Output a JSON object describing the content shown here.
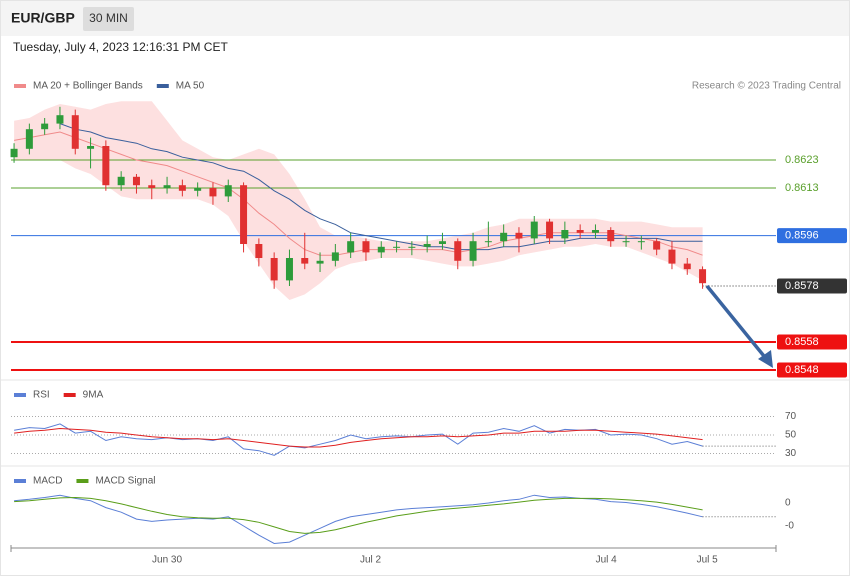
{
  "header": {
    "symbol": "EUR/GBP",
    "interval": "30 MIN",
    "timestamp": "Tuesday, July 4, 2023 12:16:31 PM CET"
  },
  "chart_data": [
    {
      "type": "candlestick",
      "credit": "Research © 2023 Trading Central",
      "up_color": "#2e9b3a",
      "down_color": "#e03131",
      "xlim": [
        -0.2,
        49.8
      ],
      "xticks": [
        {
          "value": 10,
          "label": "Jun 30"
        },
        {
          "value": 23.3,
          "label": "Jul 2"
        },
        {
          "value": 38.7,
          "label": "Jul 4"
        },
        {
          "value": 45.3,
          "label": "Jul 5"
        }
      ],
      "ylim": [
        0.8545,
        0.8645
      ],
      "candles": [
        [
          0.8624,
          0.8629,
          0.8622,
          0.8627
        ],
        [
          0.8627,
          0.8636,
          0.8625,
          0.8634
        ],
        [
          0.8634,
          0.8638,
          0.8632,
          0.8636
        ],
        [
          0.8636,
          0.8642,
          0.8634,
          0.8639
        ],
        [
          0.8639,
          0.8641,
          0.8625,
          0.8627
        ],
        [
          0.8627,
          0.8631,
          0.862,
          0.8628
        ],
        [
          0.8628,
          0.863,
          0.8612,
          0.8614
        ],
        [
          0.8614,
          0.8619,
          0.8612,
          0.8617
        ],
        [
          0.8617,
          0.8618,
          0.8611,
          0.8614
        ],
        [
          0.8614,
          0.8616,
          0.8609,
          0.8613
        ],
        [
          0.8613,
          0.8617,
          0.8611,
          0.8614
        ],
        [
          0.8614,
          0.8616,
          0.861,
          0.8612
        ],
        [
          0.8612,
          0.8615,
          0.861,
          0.8613
        ],
        [
          0.8613,
          0.8615,
          0.8607,
          0.861
        ],
        [
          0.861,
          0.8616,
          0.8608,
          0.8614
        ],
        [
          0.8614,
          0.8615,
          0.859,
          0.8593
        ],
        [
          0.8593,
          0.8595,
          0.8585,
          0.8588
        ],
        [
          0.8588,
          0.859,
          0.8577,
          0.858
        ],
        [
          0.858,
          0.8591,
          0.8578,
          0.8588
        ],
        [
          0.8588,
          0.8597,
          0.8584,
          0.8586
        ],
        [
          0.8586,
          0.859,
          0.8583,
          0.8587
        ],
        [
          0.8587,
          0.8593,
          0.8585,
          0.859
        ],
        [
          0.859,
          0.8597,
          0.8588,
          0.8594
        ],
        [
          0.8594,
          0.8595,
          0.8587,
          0.859
        ],
        [
          0.859,
          0.8594,
          0.8588,
          0.8592
        ],
        [
          0.8592,
          0.8594,
          0.859,
          0.8592
        ],
        [
          0.8592,
          0.8594,
          0.8589,
          0.8592
        ],
        [
          0.8592,
          0.8596,
          0.859,
          0.8593
        ],
        [
          0.8593,
          0.8597,
          0.8591,
          0.8594
        ],
        [
          0.8594,
          0.8595,
          0.8584,
          0.8587
        ],
        [
          0.8587,
          0.8597,
          0.8585,
          0.8594
        ],
        [
          0.8594,
          0.8601,
          0.8592,
          0.8594
        ],
        [
          0.8594,
          0.86,
          0.8592,
          0.8597
        ],
        [
          0.8597,
          0.8599,
          0.859,
          0.8595
        ],
        [
          0.8595,
          0.8603,
          0.8593,
          0.8601
        ],
        [
          0.8601,
          0.8602,
          0.8593,
          0.8595
        ],
        [
          0.8595,
          0.8601,
          0.8593,
          0.8598
        ],
        [
          0.8598,
          0.86,
          0.8595,
          0.8597
        ],
        [
          0.8597,
          0.86,
          0.8595,
          0.8598
        ],
        [
          0.8598,
          0.8599,
          0.8592,
          0.8594
        ],
        [
          0.8594,
          0.8596,
          0.8592,
          0.8594
        ],
        [
          0.8594,
          0.8596,
          0.8591,
          0.8594
        ],
        [
          0.8594,
          0.8595,
          0.8589,
          0.8591
        ],
        [
          0.8591,
          0.8594,
          0.8584,
          0.8586
        ],
        [
          0.8586,
          0.8588,
          0.8582,
          0.8584
        ],
        [
          0.8584,
          0.8585,
          0.8577,
          0.8579
        ]
      ],
      "series": [
        {
          "name": "MA 20 + Bollinger Bands",
          "color": "#f08a8a",
          "band_color": "#fde0e0",
          "values": [
            0.863,
            0.8631,
            0.8632,
            0.8633,
            0.8631,
            0.8629,
            0.8627,
            0.8625,
            0.8623,
            0.8622,
            0.8621,
            0.8619,
            0.8617,
            0.8615,
            0.8613,
            0.8609,
            0.8604,
            0.86,
            0.8595,
            0.8591,
            0.8589,
            0.8589,
            0.859,
            0.8591,
            0.8591,
            0.8591,
            0.8591,
            0.8591,
            0.8591,
            0.859,
            0.8591,
            0.8592,
            0.8594,
            0.8595,
            0.8596,
            0.8597,
            0.8597,
            0.8597,
            0.8597,
            0.8597,
            0.8596,
            0.8595,
            0.8594,
            0.8592,
            0.8591,
            0.8589
          ],
          "band_upper": [
            0.8637,
            0.8638,
            0.8641,
            0.8643,
            0.8642,
            0.8641,
            0.8643,
            0.8644,
            0.8644,
            0.8644,
            0.8637,
            0.863,
            0.8627,
            0.8624,
            0.8623,
            0.8625,
            0.8627,
            0.8625,
            0.8618,
            0.8609,
            0.8599,
            0.8596,
            0.8596,
            0.8595,
            0.8594,
            0.8594,
            0.8594,
            0.8594,
            0.8595,
            0.8596,
            0.8597,
            0.8599,
            0.86,
            0.8602,
            0.8602,
            0.8602,
            0.8602,
            0.8602,
            0.8602,
            0.8601,
            0.8601,
            0.8601,
            0.86,
            0.8599,
            0.8599,
            0.8599
          ],
          "band_lower": [
            0.8623,
            0.8623,
            0.8623,
            0.8623,
            0.862,
            0.8618,
            0.8614,
            0.861,
            0.8609,
            0.8609,
            0.8609,
            0.8609,
            0.8609,
            0.8607,
            0.8603,
            0.8594,
            0.8586,
            0.8578,
            0.8573,
            0.8575,
            0.8579,
            0.8584,
            0.8586,
            0.8587,
            0.8588,
            0.8588,
            0.8588,
            0.8587,
            0.8586,
            0.8585,
            0.8585,
            0.8586,
            0.8587,
            0.8589,
            0.859,
            0.8591,
            0.8592,
            0.8592,
            0.8593,
            0.8592,
            0.8592,
            0.859,
            0.8588,
            0.8586,
            0.8583,
            0.858
          ]
        },
        {
          "name": "MA 50",
          "color": "#3a5f9c",
          "values": [
            null,
            null,
            null,
            0.8636,
            0.8634,
            0.8633,
            0.8631,
            0.863,
            0.8629,
            0.8627,
            0.8626,
            0.8624,
            0.8623,
            0.8622,
            0.862,
            0.8619,
            0.8616,
            0.8612,
            0.8609,
            0.8605,
            0.8602,
            0.86,
            0.8597,
            0.8596,
            0.8595,
            0.8594,
            0.8593,
            0.8592,
            0.8592,
            0.8591,
            0.8591,
            0.8591,
            0.8592,
            0.8592,
            0.8593,
            0.8594,
            0.8594,
            0.8595,
            0.8595,
            0.8595,
            0.8595,
            0.8595,
            0.8595,
            0.8594,
            0.8594,
            0.8594
          ]
        }
      ],
      "levels": [
        {
          "value": 0.8623,
          "color": "#5aa02c",
          "style": "thin"
        },
        {
          "value": 0.8613,
          "color": "#5aa02c",
          "style": "thin"
        },
        {
          "value": 0.8596,
          "color": "#2f6fe0",
          "style": "box"
        },
        {
          "value": 0.8578,
          "color": "#333333",
          "style": "dotted"
        },
        {
          "value": 0.8558,
          "color": "#ee1111",
          "style": "bold"
        },
        {
          "value": 0.8548,
          "color": "#ee1111",
          "style": "bold"
        }
      ]
    },
    {
      "type": "line",
      "grid": true,
      "ylim": [
        20,
        84
      ],
      "yticks": [
        30,
        50,
        70
      ],
      "series": [
        {
          "name": "RSI",
          "color": "#5b7fd6",
          "values": [
            55,
            58,
            57,
            62,
            52,
            54,
            44,
            48,
            46,
            45,
            47,
            45,
            46,
            44,
            48,
            35,
            33,
            28,
            38,
            36,
            40,
            44,
            50,
            46,
            48,
            49,
            48,
            50,
            51,
            40,
            52,
            53,
            57,
            54,
            60,
            52,
            56,
            55,
            56,
            50,
            51,
            50,
            46,
            40,
            43,
            38
          ]
        },
        {
          "name": "9MA",
          "color": "#e02020",
          "values": [
            52,
            54,
            55,
            57,
            56,
            55,
            53,
            52,
            50,
            48,
            47,
            46,
            46,
            45,
            46,
            44,
            42,
            40,
            38,
            37,
            37,
            39,
            42,
            44,
            46,
            47,
            48,
            48,
            49,
            48,
            49,
            50,
            52,
            52,
            54,
            54,
            54,
            55,
            55,
            54,
            53,
            52,
            51,
            49,
            47,
            45
          ]
        }
      ]
    },
    {
      "type": "line",
      "grid": false,
      "ylim": [
        -0.0009,
        0.0007
      ],
      "yticks": [
        0,
        {
          "value": -0.0005,
          "label": "-0"
        }
      ],
      "series": [
        {
          "name": "MACD",
          "color": "#5b7fd6",
          "values": [
            5e-05,
            8e-05,
            0.00012,
            0.00017,
            0.0001,
            5e-05,
            -0.0001,
            -0.0002,
            -0.00035,
            -0.0004,
            -0.00037,
            -0.00035,
            -0.00033,
            -0.00035,
            -0.0003,
            -0.0005,
            -0.0007,
            -0.00088,
            -0.00085,
            -0.0007,
            -0.00055,
            -0.0004,
            -0.0003,
            -0.00025,
            -0.0002,
            -0.00015,
            -0.00012,
            -0.0001,
            -8e-05,
            -6e-05,
            -4e-05,
            0,
            5e-05,
            8e-05,
            0.00017,
            0.00012,
            0.00013,
            0.0001,
            8e-05,
            3e-05,
            1e-05,
            -3e-05,
            -8e-05,
            -0.00015,
            -0.00022,
            -0.0003
          ]
        },
        {
          "name": "MACD Signal",
          "color": "#5a9e1a",
          "values": [
            3e-05,
            5e-05,
            8e-05,
            0.00011,
            0.00012,
            0.0001,
            5e-05,
            -2e-05,
            -0.0001,
            -0.00018,
            -0.00025,
            -0.0003,
            -0.00032,
            -0.00033,
            -0.00033,
            -0.00036,
            -0.00042,
            -0.00052,
            -0.00062,
            -0.00066,
            -0.00064,
            -0.00058,
            -0.0005,
            -0.00042,
            -0.00035,
            -0.00028,
            -0.00023,
            -0.00018,
            -0.00014,
            -0.00011,
            -8e-05,
            -5e-05,
            -2e-05,
            2e-05,
            6e-05,
            8e-05,
            0.0001,
            0.0001,
            0.0001,
            9e-05,
            7e-05,
            5e-05,
            2e-05,
            -3e-05,
            -9e-05,
            -0.00015
          ]
        }
      ]
    }
  ]
}
